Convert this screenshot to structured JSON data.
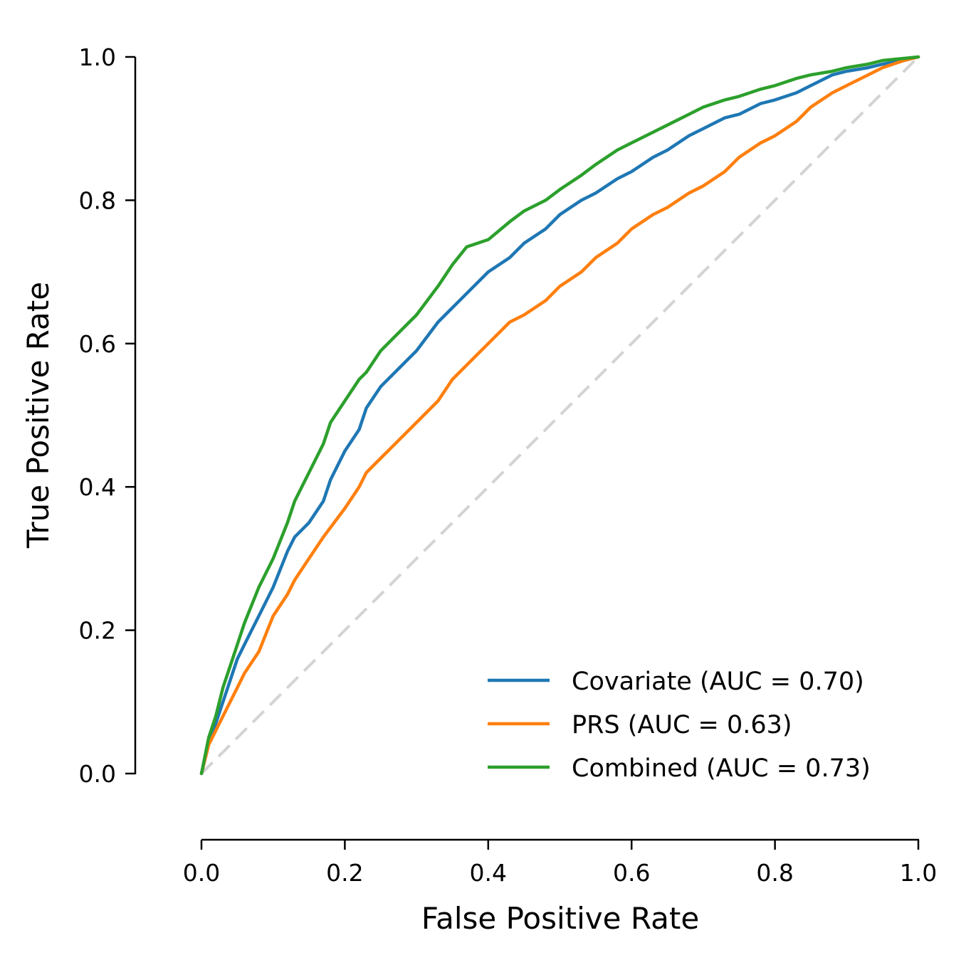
{
  "chart_data": {
    "type": "line",
    "title": "",
    "xlabel": "False Positive Rate",
    "ylabel": "True Positive Rate",
    "xlim": [
      0,
      1
    ],
    "ylim": [
      0,
      1
    ],
    "grid": false,
    "legend_position": "bottom-right",
    "xticks": [
      "0.0",
      "0.2",
      "0.4",
      "0.6",
      "0.8",
      "1.0"
    ],
    "yticks": [
      "0.0",
      "0.2",
      "0.4",
      "0.6",
      "0.8",
      "1.0"
    ],
    "reference_line": {
      "name": "chance",
      "color": "#d3d3d3",
      "style": "dashed",
      "x": [
        0,
        1
      ],
      "y": [
        0,
        1
      ]
    },
    "series": [
      {
        "name": "Covariate (AUC = 0.70)",
        "color": "#1f77b4",
        "x": [
          0,
          0.01,
          0.02,
          0.03,
          0.04,
          0.05,
          0.06,
          0.08,
          0.1,
          0.12,
          0.13,
          0.15,
          0.17,
          0.18,
          0.2,
          0.22,
          0.23,
          0.25,
          0.27,
          0.29,
          0.3,
          0.33,
          0.35,
          0.38,
          0.4,
          0.43,
          0.45,
          0.48,
          0.5,
          0.53,
          0.55,
          0.58,
          0.6,
          0.63,
          0.65,
          0.68,
          0.7,
          0.73,
          0.75,
          0.78,
          0.8,
          0.83,
          0.85,
          0.88,
          0.9,
          0.93,
          0.95,
          0.98,
          1.0
        ],
        "y": [
          0,
          0.04,
          0.07,
          0.1,
          0.13,
          0.16,
          0.18,
          0.22,
          0.26,
          0.31,
          0.33,
          0.35,
          0.38,
          0.41,
          0.45,
          0.48,
          0.51,
          0.54,
          0.56,
          0.58,
          0.59,
          0.63,
          0.65,
          0.68,
          0.7,
          0.72,
          0.74,
          0.76,
          0.78,
          0.8,
          0.81,
          0.83,
          0.84,
          0.86,
          0.87,
          0.89,
          0.9,
          0.915,
          0.92,
          0.935,
          0.94,
          0.95,
          0.96,
          0.975,
          0.98,
          0.985,
          0.99,
          0.995,
          1.0
        ]
      },
      {
        "name": "PRS (AUC = 0.63)",
        "color": "#ff7f0e",
        "x": [
          0,
          0.01,
          0.02,
          0.03,
          0.04,
          0.05,
          0.06,
          0.08,
          0.1,
          0.12,
          0.13,
          0.15,
          0.17,
          0.2,
          0.22,
          0.23,
          0.25,
          0.27,
          0.3,
          0.33,
          0.35,
          0.38,
          0.4,
          0.43,
          0.45,
          0.48,
          0.5,
          0.53,
          0.55,
          0.58,
          0.6,
          0.63,
          0.65,
          0.68,
          0.7,
          0.73,
          0.75,
          0.78,
          0.8,
          0.83,
          0.85,
          0.88,
          0.9,
          0.93,
          0.95,
          0.98,
          1.0
        ],
        "y": [
          0,
          0.04,
          0.06,
          0.08,
          0.1,
          0.12,
          0.14,
          0.17,
          0.22,
          0.25,
          0.27,
          0.3,
          0.33,
          0.37,
          0.4,
          0.42,
          0.44,
          0.46,
          0.49,
          0.52,
          0.55,
          0.58,
          0.6,
          0.63,
          0.64,
          0.66,
          0.68,
          0.7,
          0.72,
          0.74,
          0.76,
          0.78,
          0.79,
          0.81,
          0.82,
          0.84,
          0.86,
          0.88,
          0.89,
          0.91,
          0.93,
          0.95,
          0.96,
          0.975,
          0.985,
          0.995,
          1.0
        ]
      },
      {
        "name": "Combined (AUC = 0.73)",
        "color": "#2ca02c",
        "x": [
          0,
          0.01,
          0.02,
          0.03,
          0.04,
          0.05,
          0.06,
          0.08,
          0.1,
          0.12,
          0.13,
          0.15,
          0.17,
          0.18,
          0.2,
          0.22,
          0.23,
          0.25,
          0.27,
          0.3,
          0.33,
          0.35,
          0.37,
          0.4,
          0.43,
          0.45,
          0.48,
          0.5,
          0.53,
          0.55,
          0.58,
          0.6,
          0.63,
          0.65,
          0.68,
          0.7,
          0.73,
          0.75,
          0.78,
          0.8,
          0.83,
          0.85,
          0.88,
          0.9,
          0.93,
          0.95,
          0.98,
          1.0
        ],
        "y": [
          0,
          0.05,
          0.08,
          0.12,
          0.15,
          0.18,
          0.21,
          0.26,
          0.3,
          0.35,
          0.38,
          0.42,
          0.46,
          0.49,
          0.52,
          0.55,
          0.56,
          0.59,
          0.61,
          0.64,
          0.68,
          0.71,
          0.735,
          0.745,
          0.77,
          0.785,
          0.8,
          0.815,
          0.835,
          0.85,
          0.87,
          0.88,
          0.895,
          0.905,
          0.92,
          0.93,
          0.94,
          0.945,
          0.955,
          0.96,
          0.97,
          0.975,
          0.98,
          0.985,
          0.99,
          0.995,
          0.998,
          1.0
        ]
      }
    ]
  }
}
